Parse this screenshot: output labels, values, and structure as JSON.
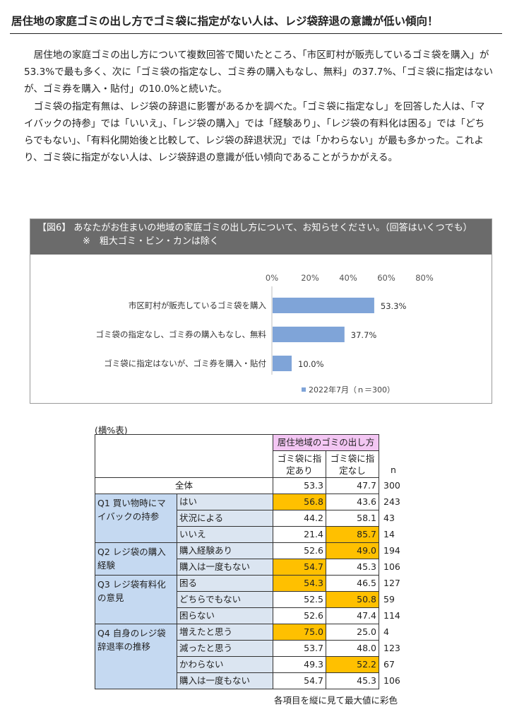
{
  "headline": "居住地の家庭ゴミの出し方でゴミ袋に指定がない人は、レジ袋辞退の意識が低い傾向！",
  "paragraphs": [
    "居住地の家庭ゴミの出し方について複数回答で聞いたところ、「市区町村が販売しているゴミ袋を購入」が53.3%で最も多く、次に「ゴミ袋の指定なし、ゴミ券の購入もなし、無料」の37.7%、「ゴミ袋に指定はないが、ゴミ券を購入・貼付」の10.0%と続いた。",
    "ゴミ袋の指定有無は、レジ袋の辞退に影響があるかを調べた。「ゴミ袋に指定なし」を回答した人は、「マイバックの持参」では「いいえ」、「レジ袋の購入」では「経験あり」、「レジ袋の有料化は困る」では「どちらでもない」、「有料化開始後と比較して、レジ袋の辞退状況」では「かわらない」が最も多かった。これより、ゴミ袋に指定がない人は、レジ袋辞退の意識が低い傾向であることがうかがえる。"
  ],
  "figure": {
    "title_line1": "【図6】 あなたがお住まいの地域の家庭ゴミの出し方について、お知らせください。（回答はいくつでも）",
    "title_line2": "※　粗大ゴミ・ビン・カンは除く"
  },
  "chart_data": {
    "type": "bar",
    "orientation": "horizontal",
    "categories": [
      "市区町村が販売しているゴミ袋を購入",
      "ゴミ袋の指定なし、ゴミ券の購入もなし、無料",
      "ゴミ袋に指定はないが、ゴミ券を購入・貼付"
    ],
    "values": [
      53.3,
      37.7,
      10.0
    ],
    "data_labels": [
      "53.3%",
      "37.7%",
      "10.0%"
    ],
    "xticks": [
      "0%",
      "20%",
      "40%",
      "60%",
      "80%"
    ],
    "xlim": [
      0,
      80
    ],
    "legend": "2022年7月（ｎ＝300）",
    "legend_position": "bottom",
    "bar_color": "#7fa4d8",
    "grid": false
  },
  "table": {
    "caption": "(横%表)",
    "header_group": "居住地域のゴミの出し方",
    "col1": "ゴミ袋に指定あり",
    "col2": "ゴミ袋に指定なし",
    "n_label": "n",
    "total": {
      "label": "全体",
      "a": "53.3",
      "b": "47.7",
      "n": "300"
    },
    "groups": [
      {
        "label": "Q1 買い物時にマイバックの持参",
        "rows": [
          {
            "label": "はい",
            "a": "56.8",
            "b": "43.6",
            "n": "243",
            "hl": "a"
          },
          {
            "label": "状況による",
            "a": "44.2",
            "b": "58.1",
            "n": "43",
            "hl": ""
          },
          {
            "label": "いいえ",
            "a": "21.4",
            "b": "85.7",
            "n": "14",
            "hl": "b"
          }
        ]
      },
      {
        "label": "Q2 レジ袋の購入経験",
        "rows": [
          {
            "label": "購入経験あり",
            "a": "52.6",
            "b": "49.0",
            "n": "194",
            "hl": "b"
          },
          {
            "label": "購入は一度もない",
            "a": "54.7",
            "b": "45.3",
            "n": "106",
            "hl": "a"
          }
        ]
      },
      {
        "label": "Q3 レジ袋有料化の意見",
        "rows": [
          {
            "label": "困る",
            "a": "54.3",
            "b": "46.5",
            "n": "127",
            "hl": "a"
          },
          {
            "label": "どちらでもない",
            "a": "52.5",
            "b": "50.8",
            "n": "59",
            "hl": "b"
          },
          {
            "label": "困らない",
            "a": "52.6",
            "b": "47.4",
            "n": "114",
            "hl": ""
          }
        ]
      },
      {
        "label": "Q4 自身のレジ袋辞退率の推移",
        "rows": [
          {
            "label": "増えたと思う",
            "a": "75.0",
            "b": "25.0",
            "n": "4",
            "hl": "a"
          },
          {
            "label": "減ったと思う",
            "a": "53.7",
            "b": "48.0",
            "n": "123",
            "hl": ""
          },
          {
            "label": "かわらない",
            "a": "49.3",
            "b": "52.2",
            "n": "67",
            "hl": "b"
          },
          {
            "label": "購入は一度もない",
            "a": "54.7",
            "b": "45.3",
            "n": "106",
            "hl": ""
          }
        ]
      }
    ],
    "highlight_color": "#ffc000",
    "footnote": "各項目を縦に見て最大値に彩色"
  }
}
